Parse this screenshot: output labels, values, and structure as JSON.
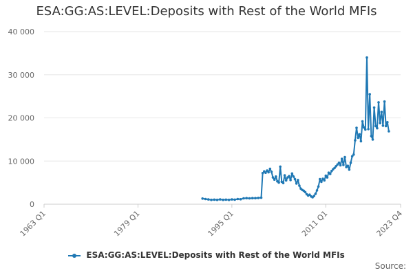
{
  "chart_data": {
    "type": "line",
    "title": "ESA:GG:AS:LEVEL:Deposits with Rest of the World MFIs",
    "source_label": "Source:",
    "xlabel": "",
    "ylabel": "",
    "x_range": [
      "1963 Q1",
      "2023 Q4"
    ],
    "x_ticks": [
      "1963 Q1",
      "1979 Q1",
      "1995 Q1",
      "2011 Q1",
      "2023 Q4"
    ],
    "ylim": [
      0,
      40000
    ],
    "y_ticks": [
      0,
      10000,
      20000,
      30000,
      40000
    ],
    "y_tick_labels": [
      "0",
      "10 000",
      "20 000",
      "30 000",
      "40 000"
    ],
    "grid": true,
    "legend_position": "bottom",
    "series": [
      {
        "name": "ESA:GG:AS:LEVEL:Deposits with Rest of the World MFIs",
        "color": "#1f78b4",
        "points": [
          [
            "1990 Q1",
            1300
          ],
          [
            "1990 Q3",
            1200
          ],
          [
            "1991 Q1",
            1100
          ],
          [
            "1991 Q3",
            1000
          ],
          [
            "1992 Q1",
            1050
          ],
          [
            "1992 Q3",
            1000
          ],
          [
            "1993 Q1",
            1100
          ],
          [
            "1993 Q3",
            1000
          ],
          [
            "1994 Q1",
            1050
          ],
          [
            "1994 Q3",
            1000
          ],
          [
            "1995 Q1",
            1100
          ],
          [
            "1995 Q3",
            1050
          ],
          [
            "1996 Q1",
            1200
          ],
          [
            "1996 Q3",
            1150
          ],
          [
            "1997 Q1",
            1350
          ],
          [
            "1997 Q3",
            1400
          ],
          [
            "1998 Q1",
            1350
          ],
          [
            "1998 Q3",
            1400
          ],
          [
            "1999 Q1",
            1400
          ],
          [
            "1999 Q3",
            1450
          ],
          [
            "2000 Q1",
            1500
          ],
          [
            "2000 Q2",
            7200
          ],
          [
            "2000 Q3",
            7600
          ],
          [
            "2000 Q4",
            7300
          ],
          [
            "2001 Q1",
            7800
          ],
          [
            "2001 Q2",
            7400
          ],
          [
            "2001 Q3",
            8200
          ],
          [
            "2001 Q4",
            7500
          ],
          [
            "2002 Q1",
            6200
          ],
          [
            "2002 Q2",
            5700
          ],
          [
            "2002 Q3",
            6400
          ],
          [
            "2002 Q4",
            5300
          ],
          [
            "2003 Q1",
            5000
          ],
          [
            "2003 Q2",
            8700
          ],
          [
            "2003 Q3",
            5200
          ],
          [
            "2003 Q4",
            4900
          ],
          [
            "2004 Q1",
            6700
          ],
          [
            "2004 Q2",
            5500
          ],
          [
            "2004 Q3",
            6200
          ],
          [
            "2004 Q4",
            6500
          ],
          [
            "2005 Q1",
            5600
          ],
          [
            "2005 Q2",
            7100
          ],
          [
            "2005 Q3",
            6400
          ],
          [
            "2005 Q4",
            5800
          ],
          [
            "2006 Q1",
            4800
          ],
          [
            "2006 Q2",
            5600
          ],
          [
            "2006 Q3",
            4300
          ],
          [
            "2006 Q4",
            3600
          ],
          [
            "2007 Q1",
            3300
          ],
          [
            "2007 Q2",
            3100
          ],
          [
            "2007 Q3",
            2800
          ],
          [
            "2007 Q4",
            2300
          ],
          [
            "2008 Q1",
            2000
          ],
          [
            "2008 Q2",
            2200
          ],
          [
            "2008 Q3",
            1800
          ],
          [
            "2008 Q4",
            1600
          ],
          [
            "2009 Q1",
            1900
          ],
          [
            "2009 Q2",
            2400
          ],
          [
            "2009 Q3",
            3200
          ],
          [
            "2009 Q4",
            4100
          ],
          [
            "2010 Q1",
            5800
          ],
          [
            "2010 Q2",
            5200
          ],
          [
            "2010 Q3",
            5900
          ],
          [
            "2010 Q4",
            5500
          ],
          [
            "2011 Q1",
            6600
          ],
          [
            "2011 Q2",
            6200
          ],
          [
            "2011 Q3",
            7300
          ],
          [
            "2011 Q4",
            7000
          ],
          [
            "2012 Q1",
            7700
          ],
          [
            "2012 Q2",
            8100
          ],
          [
            "2012 Q3",
            8400
          ],
          [
            "2012 Q4",
            8800
          ],
          [
            "2013 Q1",
            9200
          ],
          [
            "2013 Q2",
            9600
          ],
          [
            "2013 Q3",
            9000
          ],
          [
            "2013 Q4",
            10500
          ],
          [
            "2014 Q1",
            9100
          ],
          [
            "2014 Q2",
            10900
          ],
          [
            "2014 Q3",
            8600
          ],
          [
            "2014 Q4",
            8900
          ],
          [
            "2015 Q1",
            8000
          ],
          [
            "2015 Q2",
            9600
          ],
          [
            "2015 Q3",
            11100
          ],
          [
            "2015 Q4",
            11500
          ],
          [
            "2016 Q1",
            14800
          ],
          [
            "2016 Q2",
            17700
          ],
          [
            "2016 Q3",
            15400
          ],
          [
            "2016 Q4",
            16200
          ],
          [
            "2017 Q1",
            14600
          ],
          [
            "2017 Q2",
            19200
          ],
          [
            "2017 Q3",
            17800
          ],
          [
            "2017 Q4",
            17300
          ],
          [
            "2018 Q1",
            34000
          ],
          [
            "2018 Q2",
            17400
          ],
          [
            "2018 Q3",
            25500
          ],
          [
            "2018 Q4",
            15800
          ],
          [
            "2019 Q1",
            15000
          ],
          [
            "2019 Q2",
            22400
          ],
          [
            "2019 Q3",
            18100
          ],
          [
            "2019 Q4",
            17600
          ],
          [
            "2020 Q1",
            23600
          ],
          [
            "2020 Q2",
            18800
          ],
          [
            "2020 Q3",
            21400
          ],
          [
            "2020 Q4",
            18200
          ],
          [
            "2021 Q1",
            23800
          ],
          [
            "2021 Q2",
            18100
          ],
          [
            "2021 Q3",
            19000
          ],
          [
            "2021 Q4",
            16900
          ]
        ]
      }
    ]
  }
}
